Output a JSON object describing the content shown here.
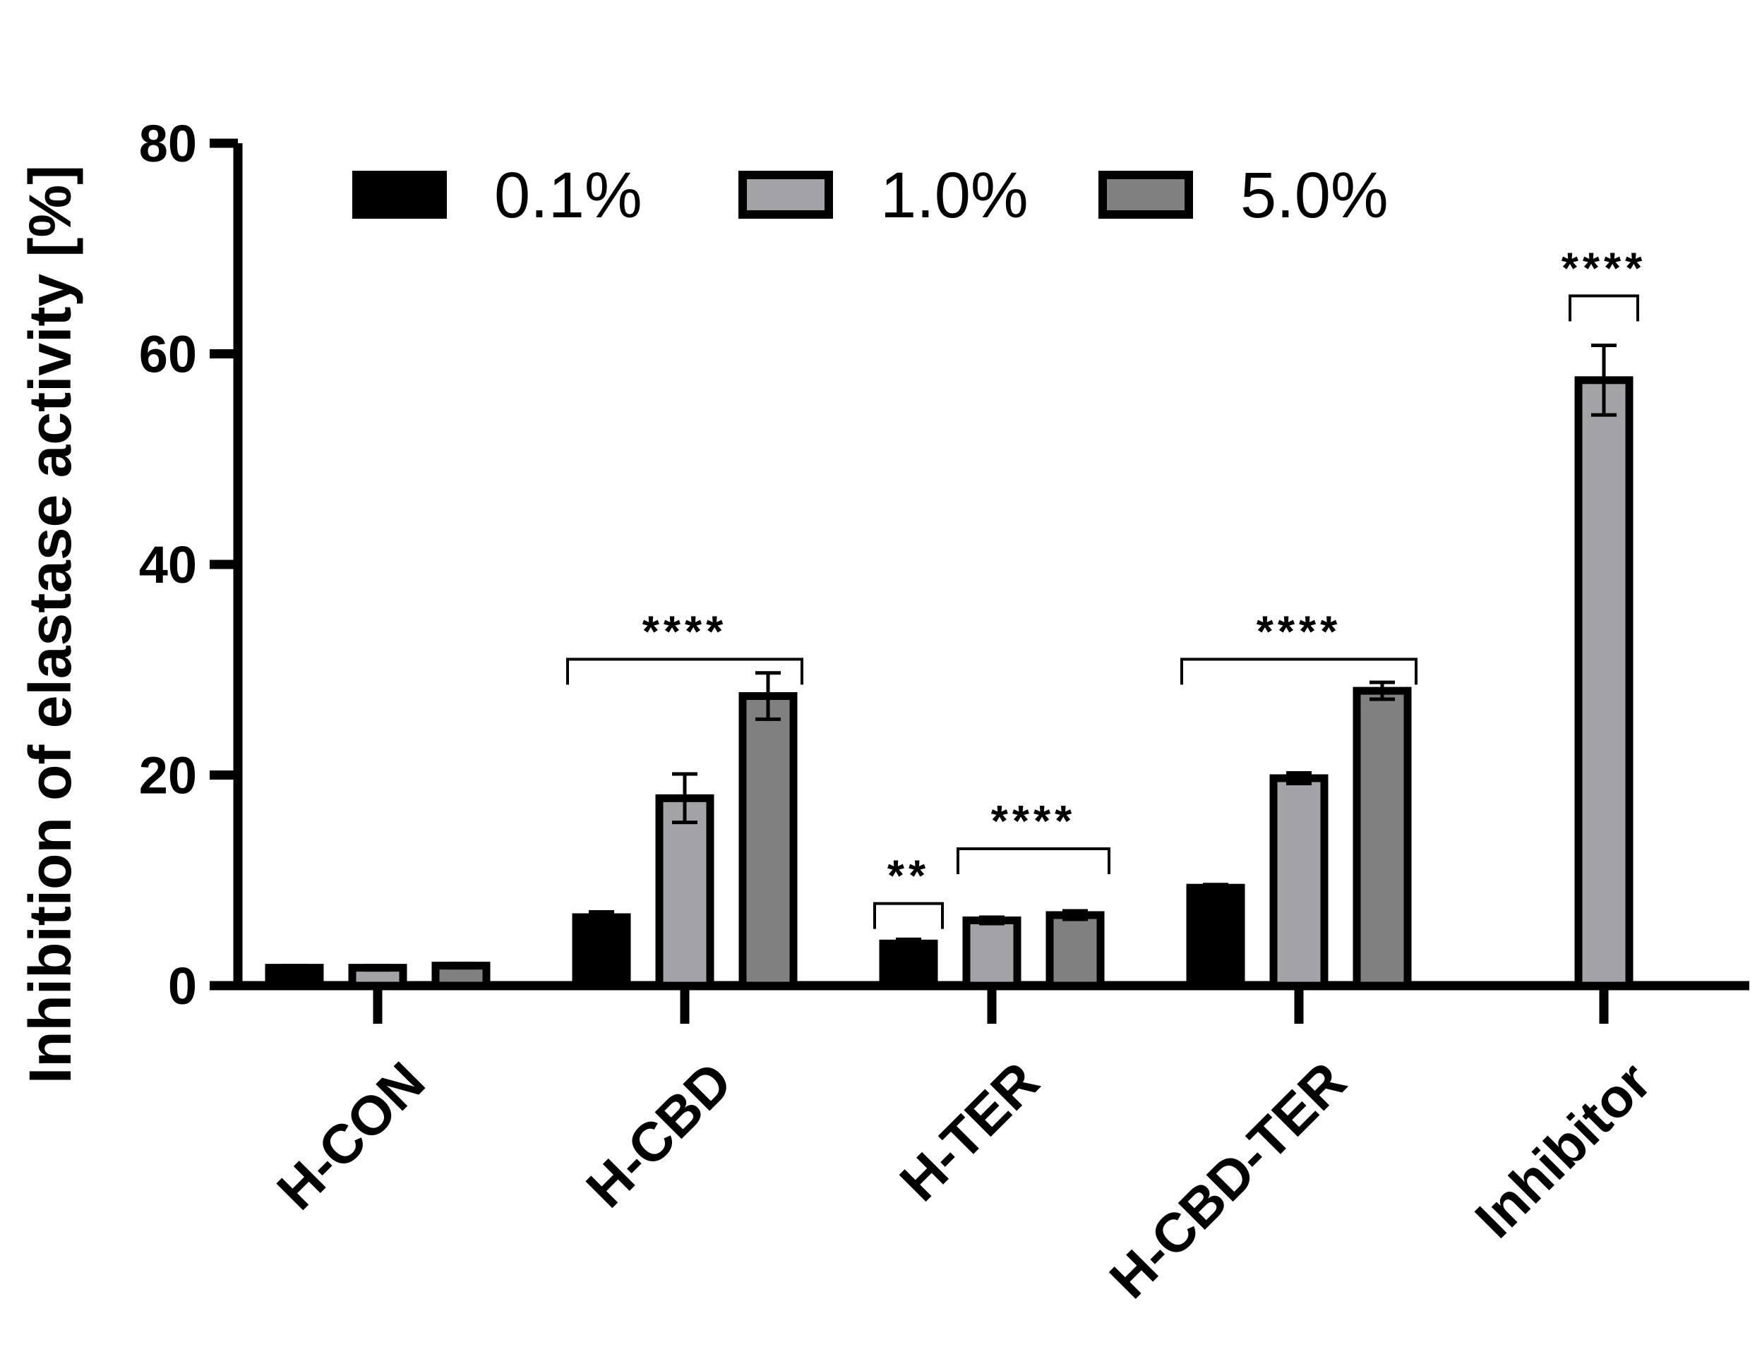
{
  "chart_data": {
    "type": "bar",
    "ylabel": "Inhibition of elastase activity [%]",
    "xlabel": "",
    "ylim": [
      0,
      80
    ],
    "yticks": [
      "0",
      "20",
      "40",
      "60",
      "80"
    ],
    "legend_position": "top",
    "categories": [
      "H-CON",
      "H-CBD",
      "H-TER",
      "H-CBD-TER",
      "Inhibitor"
    ],
    "series": [
      {
        "name": "0.1%",
        "color": "#000000",
        "values": [
          1.7,
          6.5,
          4.0,
          9.3,
          null
        ],
        "errors": [
          0.2,
          0.5,
          0.4,
          0.3,
          null
        ]
      },
      {
        "name": "1.0%",
        "color": "#a3a3a7",
        "values": [
          1.7,
          17.8,
          6.2,
          19.7,
          57.5
        ],
        "errors": [
          0.2,
          2.3,
          0.3,
          0.5,
          3.3
        ]
      },
      {
        "name": "5.0%",
        "color": "#808080",
        "values": [
          1.9,
          27.5,
          6.7,
          28.0,
          null
        ],
        "errors": [
          0.2,
          2.2,
          0.4,
          0.8,
          null
        ]
      }
    ],
    "significance": [
      {
        "category": "H-CBD",
        "from_series": 0,
        "to_series": 2,
        "label": "****",
        "y": 31
      },
      {
        "category": "H-TER",
        "from_series": 0,
        "to_series": 0,
        "label": "**",
        "y": 7.8
      },
      {
        "category": "H-TER",
        "from_series": 1,
        "to_series": 2,
        "label": "****",
        "y": 13
      },
      {
        "category": "H-CBD-TER",
        "from_series": 0,
        "to_series": 2,
        "label": "****",
        "y": 31
      },
      {
        "category": "Inhibitor",
        "from_series": 1,
        "to_series": 1,
        "label": "****",
        "y": 65.5
      }
    ]
  }
}
